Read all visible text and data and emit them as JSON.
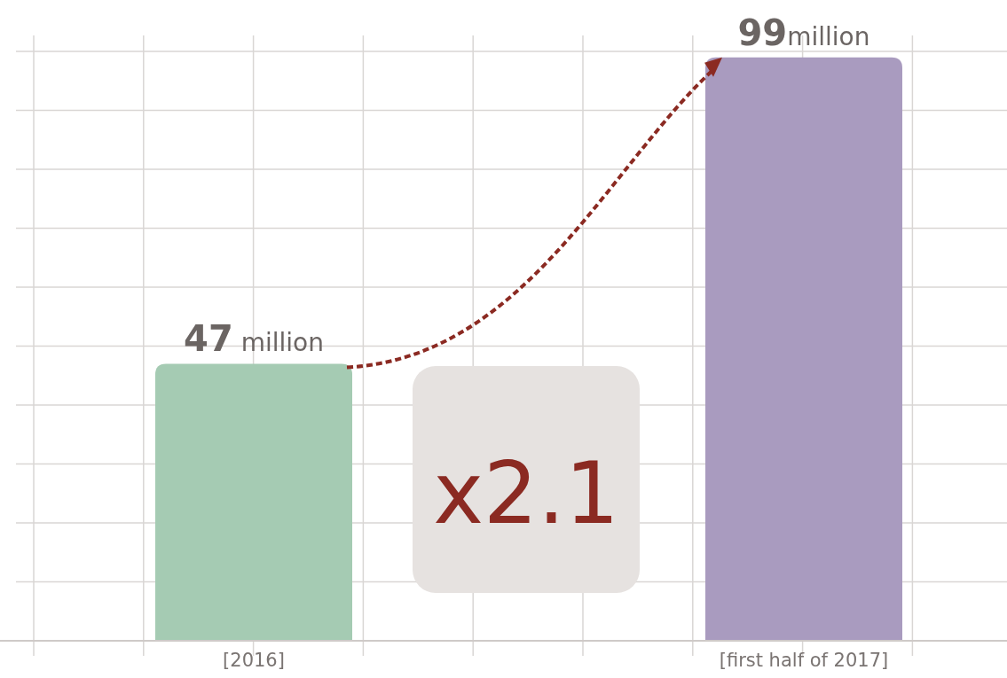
{
  "chart_data": {
    "type": "bar",
    "categories": [
      "[2016]",
      "[first half of 2017]"
    ],
    "values": [
      47,
      99
    ],
    "colors": [
      "#a5cbb3",
      "#a99bbf"
    ],
    "value_labels": [
      "47 million",
      "99million"
    ],
    "ylim": [
      0,
      100
    ],
    "yticks": [
      {
        "value": 10,
        "label": null
      },
      {
        "value": 20,
        "label": null
      },
      {
        "value": 30,
        "label": null
      },
      {
        "value": 40,
        "label": null
      },
      {
        "value": 50,
        "label": null
      },
      {
        "value": 60,
        "label": null
      },
      {
        "value": 70,
        "label": null
      },
      {
        "value": 80,
        "label": null
      },
      {
        "value": 90,
        "label": null
      },
      {
        "value": 100,
        "label": null
      }
    ],
    "tick_labels": "x",
    "grid": true,
    "annotations": [
      "x2.1"
    ]
  }
}
